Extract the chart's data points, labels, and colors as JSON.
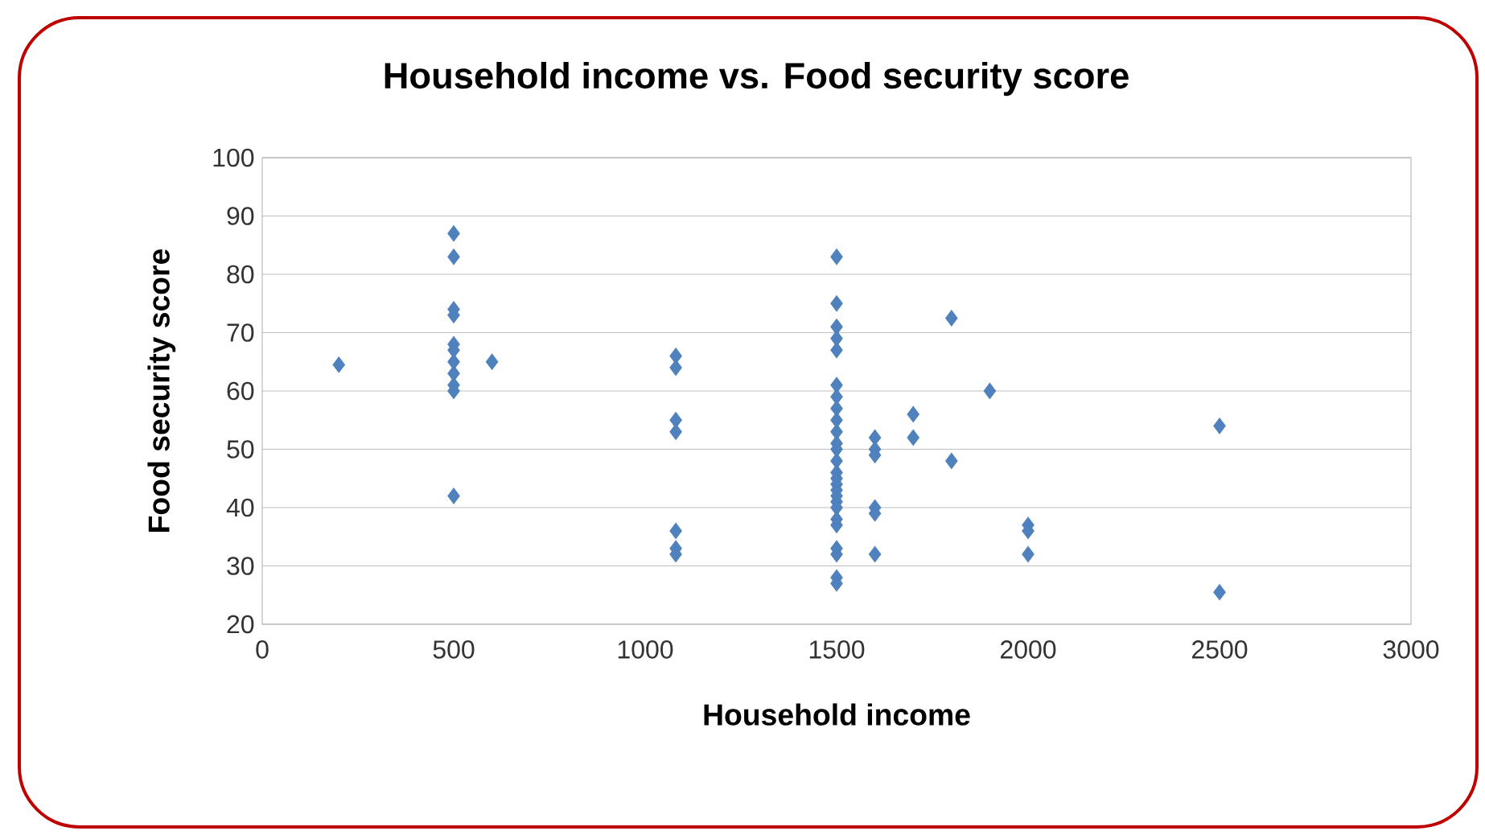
{
  "chart_data": {
    "type": "scatter",
    "title": "Household income vs. Food security score",
    "xlabel": "Household income",
    "ylabel": "Food security score",
    "x": [
      200,
      500,
      500,
      500,
      500,
      500,
      500,
      500,
      500,
      500,
      500,
      500,
      600,
      1080,
      1080,
      1080,
      1080,
      1080,
      1080,
      1080,
      1500,
      1500,
      1500,
      1500,
      1500,
      1500,
      1500,
      1500,
      1500,
      1500,
      1500,
      1500,
      1500,
      1500,
      1500,
      1500,
      1500,
      1500,
      1500,
      1500,
      1500,
      1500,
      1500,
      1500,
      1500,
      1500,
      1600,
      1600,
      1600,
      1600,
      1600,
      1600,
      1700,
      1700,
      1800,
      1800,
      1900,
      2000,
      2000,
      2000,
      2500,
      2500
    ],
    "values": [
      64.5,
      87,
      83,
      74,
      73,
      68,
      67,
      65,
      63,
      61,
      60,
      42,
      65,
      66,
      64,
      55,
      53,
      36,
      33,
      32,
      83,
      75,
      71,
      69,
      67,
      61,
      59,
      57,
      55,
      53,
      51,
      50,
      48,
      46,
      45,
      44,
      43,
      42,
      41,
      40,
      38,
      37,
      33,
      32,
      28,
      27,
      52,
      50,
      49,
      40,
      39,
      32,
      56,
      52,
      72.5,
      48,
      60,
      37,
      36,
      32,
      54,
      25.5
    ],
    "color": "#4f81bd",
    "marker": "diamond",
    "grid": "y",
    "xlim": [
      0,
      3000
    ],
    "xticks": [
      0,
      500,
      1000,
      1500,
      2000,
      2500,
      3000
    ],
    "ylim": [
      20,
      100
    ],
    "yticks": [
      20,
      30,
      40,
      50,
      60,
      70,
      80,
      90,
      100
    ]
  }
}
